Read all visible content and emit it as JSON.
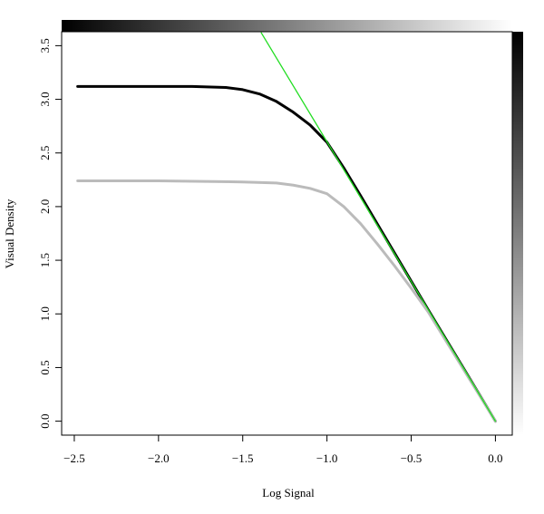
{
  "chart_data": {
    "type": "line",
    "x_label": "Log Signal",
    "y_label": "Visual Density",
    "xlim": [
      -2.575,
      0.1
    ],
    "ylim": [
      -0.13,
      3.63
    ],
    "xticks": [
      {
        "value": -2.5,
        "label": "−2.5"
      },
      {
        "value": -2,
        "label": "−2.0"
      },
      {
        "value": -1.5,
        "label": "−1.5"
      },
      {
        "value": -1,
        "label": "−1.0"
      },
      {
        "value": -0.5,
        "label": "−0.5"
      },
      {
        "value": 0,
        "label": "0.0"
      }
    ],
    "yticks": [
      {
        "value": 0,
        "label": "0.0"
      },
      0.5,
      {
        "value": 1,
        "label": "1.0"
      },
      1.5,
      {
        "value": 2,
        "label": "2.0"
      },
      2.5,
      {
        "value": 3,
        "label": "3.0"
      },
      3.5
    ],
    "series": [
      {
        "color": "#000000",
        "width": 3,
        "x": [
          -2.48,
          -2.2,
          -2.0,
          -1.8,
          -1.6,
          -1.5,
          -1.4,
          -1.3,
          -1.2,
          -1.1,
          -1.0,
          -0.9,
          -0.8,
          -0.6,
          -0.4,
          -0.2,
          0
        ],
        "values": [
          3.12,
          3.12,
          3.12,
          3.12,
          3.11,
          3.09,
          3.05,
          2.98,
          2.88,
          2.76,
          2.6,
          2.36,
          2.1,
          1.57,
          1.04,
          0.52,
          0
        ]
      },
      {
        "color": "#bbbbbb",
        "width": 3,
        "x": [
          -2.48,
          -2.0,
          -1.5,
          -1.3,
          -1.2,
          -1.1,
          -1.0,
          -0.9,
          -0.8,
          -0.7,
          -0.6,
          -0.5,
          -0.4,
          -0.2,
          0
        ],
        "values": [
          2.24,
          2.24,
          2.23,
          2.22,
          2.2,
          2.17,
          2.12,
          2.0,
          1.84,
          1.65,
          1.45,
          1.24,
          1.02,
          0.51,
          0
        ]
      },
      {
        "color": "#22dd22",
        "width": 1.3,
        "x": [
          -1.39,
          0
        ],
        "values": [
          3.62,
          0
        ]
      }
    ]
  }
}
